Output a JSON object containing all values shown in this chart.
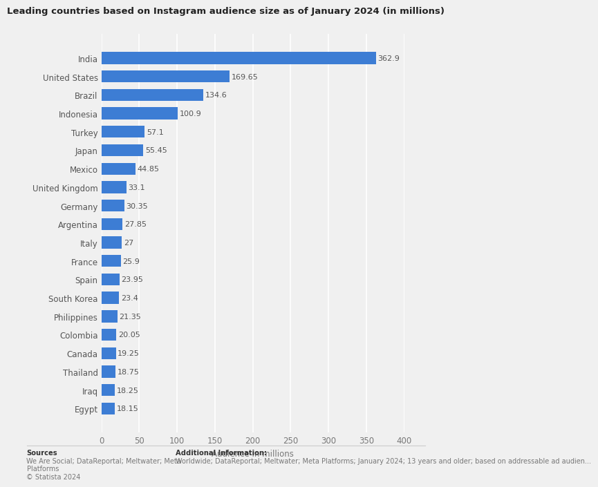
{
  "title": "Leading countries based on Instagram audience size as of January 2024 (in millions)",
  "countries": [
    "India",
    "United States",
    "Brazil",
    "Indonesia",
    "Turkey",
    "Japan",
    "Mexico",
    "United Kingdom",
    "Germany",
    "Argentina",
    "Italy",
    "France",
    "Spain",
    "South Korea",
    "Philippines",
    "Colombia",
    "Canada",
    "Thailand",
    "Iraq",
    "Egypt"
  ],
  "values": [
    362.9,
    169.65,
    134.6,
    100.9,
    57.1,
    55.45,
    44.85,
    33.1,
    30.35,
    27.85,
    27,
    25.9,
    23.95,
    23.4,
    21.35,
    20.05,
    19.25,
    18.75,
    18.25,
    18.15
  ],
  "bar_color": "#3d7dd4",
  "bg_color": "#f0f0f0",
  "plot_bg_color": "#f0f0f0",
  "xlabel": "Audience in millions",
  "xlim": [
    0,
    400
  ],
  "xticks": [
    0,
    50,
    100,
    150,
    200,
    250,
    300,
    350,
    400
  ],
  "title_fontsize": 9.5,
  "label_fontsize": 8.5,
  "value_fontsize": 8.0,
  "tick_fontsize": 8.5,
  "sources_title": "Sources",
  "sources_body": "We Are Social; DataReportal; Meltwater; Meta\nPlatforms\n© Statista 2024",
  "additional_title": "Additional Information:",
  "additional_body": "Worldwide; DataReportal; Meltwater; Meta Platforms; January 2024; 13 years and older; based on addressable ad audien..."
}
